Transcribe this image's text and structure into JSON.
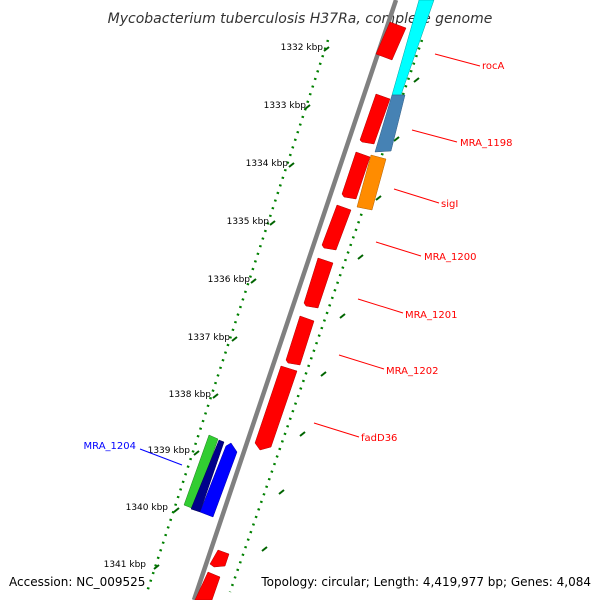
{
  "title": "Mycobacterium tuberculosis H37Ra, complete genome",
  "footer": {
    "accession": "Accession: NC_009525",
    "topology": "Topology: circular; Length: 4,419,977 bp; Genes: 4,084"
  },
  "colors": {
    "backbone": "#808080",
    "ruler_dots": "#008000",
    "gene_red": "#ff0000",
    "gene_cyan": "#00ffff",
    "gene_steelblue": "#4682b4",
    "gene_orange": "#ff8c00",
    "gene_green": "#32cd32",
    "gene_navy": "#00008b",
    "gene_blue": "#0000ff",
    "label_red": "#ff0000",
    "label_blue": "#0000ff"
  },
  "ticks": [
    "1332 kbp",
    "1333 kbp",
    "1334 kbp",
    "1335 kbp",
    "1336 kbp",
    "1337 kbp",
    "1338 kbp",
    "1339 kbp",
    "1340 kbp",
    "1341 kbp"
  ],
  "gene_labels": [
    "rocA",
    "MRA_1198",
    "sigI",
    "MRA_1200",
    "MRA_1201",
    "MRA_1202",
    "fadD36",
    "MRA_1204"
  ]
}
